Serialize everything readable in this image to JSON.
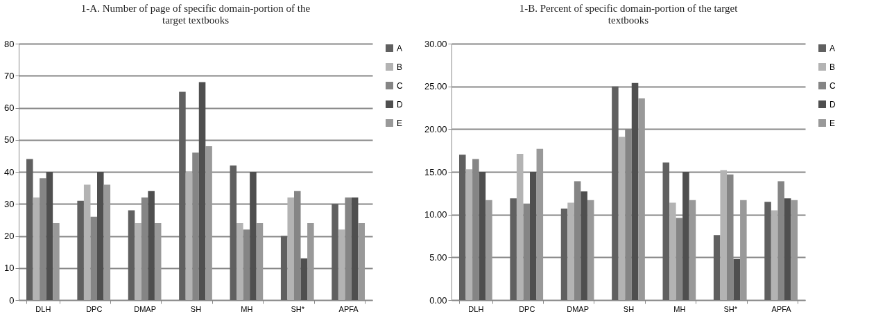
{
  "chart_data": [
    {
      "type": "bar",
      "title": "1-A. Number of page of specific domain-portion of the target textbooks",
      "categories": [
        "DLH",
        "DPC",
        "DMAP",
        "SH",
        "MH",
        "SH*",
        "APFA"
      ],
      "series": [
        {
          "name": "A",
          "color": "#606060",
          "values": [
            44,
            31,
            28,
            65,
            42,
            20,
            30
          ]
        },
        {
          "name": "B",
          "color": "#b3b3b3",
          "values": [
            32,
            36,
            24,
            40,
            24,
            32,
            22
          ]
        },
        {
          "name": "C",
          "color": "#858585",
          "values": [
            38,
            26,
            32,
            46,
            22,
            34,
            32
          ]
        },
        {
          "name": "D",
          "color": "#4f4f4f",
          "values": [
            40,
            40,
            34,
            68,
            40,
            13,
            32
          ]
        },
        {
          "name": "E",
          "color": "#999999",
          "values": [
            24,
            36,
            24,
            48,
            24,
            24,
            24
          ]
        }
      ],
      "ylim": [
        0,
        80
      ],
      "yticks": [
        0,
        10,
        20,
        30,
        40,
        50,
        60,
        70,
        80
      ],
      "grid": "y",
      "legend": "right"
    },
    {
      "type": "bar",
      "title": "1-B. Percent of specific domain-portion of the target textbooks",
      "categories": [
        "DLH",
        "DPC",
        "DMAP",
        "SH",
        "MH",
        "SH*",
        "APFA"
      ],
      "series": [
        {
          "name": "A",
          "color": "#606060",
          "values": [
            17,
            11.9,
            10.7,
            25,
            16.1,
            7.6,
            11.5
          ]
        },
        {
          "name": "B",
          "color": "#b3b3b3",
          "values": [
            15.3,
            17.1,
            11.4,
            19.1,
            11.4,
            15.2,
            10.5
          ]
        },
        {
          "name": "C",
          "color": "#858585",
          "values": [
            16.5,
            11.3,
            13.9,
            20,
            9.6,
            14.7,
            13.9
          ]
        },
        {
          "name": "D",
          "color": "#4f4f4f",
          "values": [
            15,
            15,
            12.7,
            25.4,
            15,
            4.8,
            11.9
          ]
        },
        {
          "name": "E",
          "color": "#999999",
          "values": [
            11.7,
            17.7,
            11.7,
            23.6,
            11.7,
            11.7,
            11.7
          ]
        }
      ],
      "ylim": [
        0,
        30
      ],
      "yticks": [
        {
          "value": 0,
          "label": "0.00"
        },
        {
          "value": 5,
          "label": "5.00"
        },
        {
          "value": 10,
          "label": "10.00"
        },
        {
          "value": 15,
          "label": "15.00"
        },
        {
          "value": 20,
          "label": "20.00"
        },
        {
          "value": 25,
          "label": "25.00"
        },
        {
          "value": 30,
          "label": "30.00"
        }
      ],
      "grid": "y",
      "legend": "right"
    }
  ]
}
